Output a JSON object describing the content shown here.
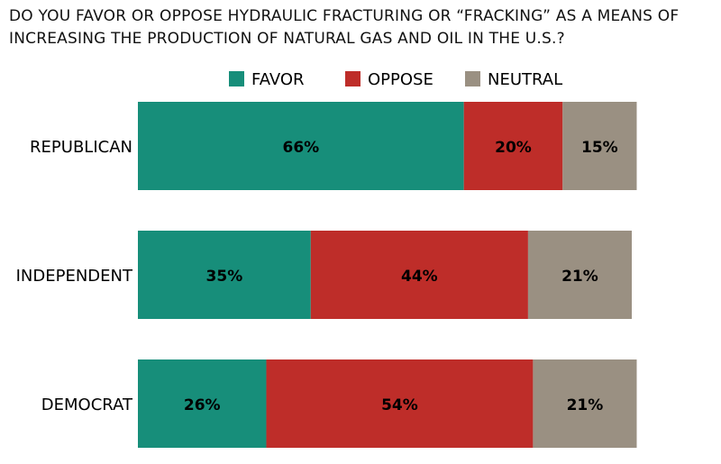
{
  "chart_data": {
    "type": "bar",
    "orientation": "horizontal",
    "stacked": true,
    "title": "DO YOU FAVOR OR OPPOSE HYDRAULIC FRACTURING OR “FRACKING” AS A MEANS OF INCREASING THE PRODUCTION OF NATURAL GAS AND OIL IN THE U.S.?",
    "categories": [
      "REPUBLICAN",
      "INDEPENDENT",
      "DEMOCRAT"
    ],
    "series": [
      {
        "name": "FAVOR",
        "color": "#178e7a",
        "values": [
          66,
          35,
          26
        ]
      },
      {
        "name": "OPPOSE",
        "color": "#be2d29",
        "values": [
          20,
          44,
          54
        ]
      },
      {
        "name": "NEUTRAL",
        "color": "#9a9082",
        "values": [
          15,
          21,
          21
        ]
      }
    ],
    "unit": "%",
    "legend": "top",
    "grid": false
  }
}
